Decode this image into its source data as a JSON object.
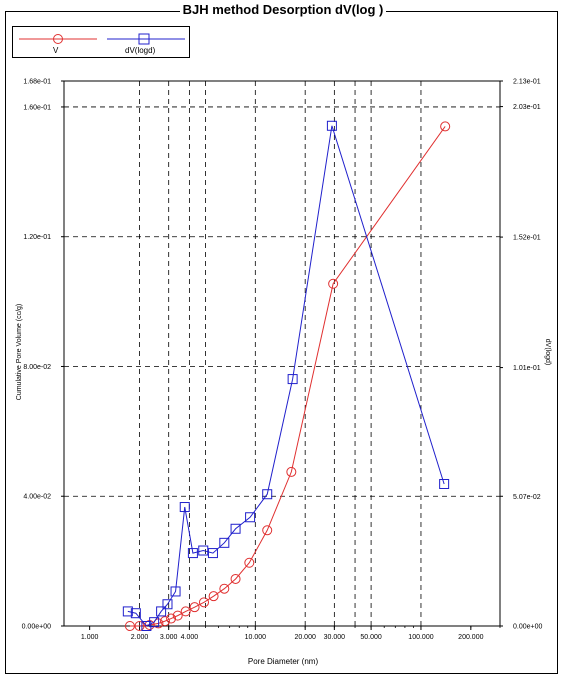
{
  "chart_data": {
    "type": "line",
    "title": "BJH method Desorption  dV(log )",
    "xlabel": "Pore Diameter (nm)",
    "ylabel": "Cumulative Pore Volume (cc/g)",
    "y2label": "dV(logd)",
    "x_scale": "log",
    "xlim": [
      0.7,
      300
    ],
    "ylim": [
      0,
      0.168
    ],
    "y2lim": [
      0,
      0.213
    ],
    "x_ticks": [
      1,
      2,
      3,
      4,
      10,
      20,
      30,
      50,
      100,
      200
    ],
    "x_tick_labels": [
      "1.000",
      "2.000",
      "3.000",
      "4.000",
      "10.000",
      "20.000",
      "30.000",
      "50.000",
      "100.000",
      "200.000"
    ],
    "x_gridlines": [
      2,
      3,
      4,
      5,
      10,
      20,
      30,
      40,
      50,
      100
    ],
    "y_ticks": [
      0,
      0.04,
      0.08,
      0.12,
      0.16,
      0.168
    ],
    "y_tick_labels": [
      "0.00e+00",
      "4.00e-02",
      "8.00e-02",
      "1.20e-01",
      "1.60e-01",
      "1.68e-01"
    ],
    "y2_ticks": [
      0,
      0.0507,
      0.101,
      0.152,
      0.203,
      0.213
    ],
    "y2_tick_labels": [
      "0.00e+00",
      "5.07e-02",
      "1.01e-01",
      "1.52e-01",
      "2.03e-01",
      "2.13e-01"
    ],
    "grid": true,
    "series": [
      {
        "name": "V",
        "axis": "left",
        "color": "#e03030",
        "marker": "circle",
        "x": [
          1.75,
          2.0,
          2.3,
          2.6,
          2.85,
          3.1,
          3.4,
          3.8,
          4.3,
          4.9,
          5.6,
          6.5,
          7.6,
          9.2,
          11.8,
          16.5,
          29.5,
          140
        ],
        "y": [
          0.0,
          0.0,
          0.0003,
          0.0008,
          0.0015,
          0.0023,
          0.0032,
          0.0045,
          0.0058,
          0.0073,
          0.0092,
          0.0115,
          0.0145,
          0.0195,
          0.0295,
          0.0475,
          0.1055,
          0.154
        ]
      },
      {
        "name": "dV(logd)",
        "axis": "right",
        "color": "#2020cc",
        "marker": "square",
        "x": [
          1.7,
          1.9,
          2.2,
          2.45,
          2.7,
          2.95,
          3.3,
          3.75,
          4.2,
          4.85,
          5.55,
          6.5,
          7.6,
          9.3,
          11.8,
          16.8,
          29,
          138
        ],
        "y": [
          0.0057,
          0.005,
          0.0,
          0.0015,
          0.0057,
          0.0085,
          0.0135,
          0.0465,
          0.0285,
          0.0295,
          0.0285,
          0.0325,
          0.038,
          0.0425,
          0.0515,
          0.0965,
          0.1955,
          0.0555
        ]
      }
    ]
  },
  "legend": {
    "item1": "V",
    "item2": "dV(logd)"
  }
}
